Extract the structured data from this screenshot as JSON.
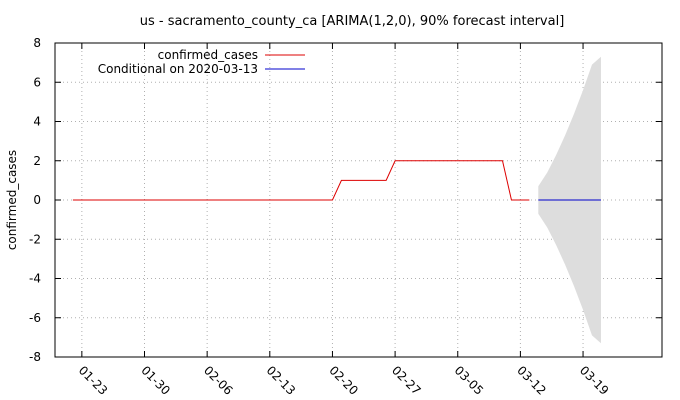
{
  "chart_data": {
    "type": "line",
    "title": "us - sacramento_county_ca [ARIMA(1,2,0), 90% forecast interval]",
    "ylabel": "confirmed_cases",
    "xlabel": "",
    "ylim": [
      -8,
      8
    ],
    "xlim": [
      "2020-01-20",
      "2020-03-20"
    ],
    "yticks": [
      "-8",
      "-6",
      "-4",
      "-2",
      "0",
      "2",
      "4",
      "6",
      "8"
    ],
    "xticks": [
      {
        "label": "01-23",
        "date": "2020-01-23"
      },
      {
        "label": "01-30",
        "date": "2020-01-30"
      },
      {
        "label": "02-06",
        "date": "2020-02-06"
      },
      {
        "label": "02-13",
        "date": "2020-02-13"
      },
      {
        "label": "02-20",
        "date": "2020-02-20"
      },
      {
        "label": "02-27",
        "date": "2020-02-27"
      },
      {
        "label": "03-05",
        "date": "2020-03-05"
      },
      {
        "label": "03-12",
        "date": "2020-03-12"
      },
      {
        "label": "03-19",
        "date": "2020-03-19"
      }
    ],
    "grid": true,
    "legend_position": "top-left",
    "series": [
      {
        "name": "confirmed_cases",
        "color": "#dd0000",
        "points": [
          [
            "2020-01-22",
            0
          ],
          [
            "2020-02-20",
            0
          ],
          [
            "2020-02-21",
            1
          ],
          [
            "2020-02-26",
            1
          ],
          [
            "2020-02-27",
            2
          ],
          [
            "2020-03-10",
            2
          ],
          [
            "2020-03-11",
            0
          ],
          [
            "2020-03-13",
            0
          ]
        ]
      },
      {
        "name": "Conditional on 2020-03-13",
        "color": "#0000cc",
        "points": [
          [
            "2020-03-14",
            0
          ],
          [
            "2020-03-21",
            0
          ]
        ]
      }
    ],
    "forecast_interval": {
      "color": "#dddddd",
      "upper": [
        [
          "2020-03-14",
          0.7
        ],
        [
          "2020-03-15",
          1.4
        ],
        [
          "2020-03-16",
          2.3
        ],
        [
          "2020-03-17",
          3.3
        ],
        [
          "2020-03-18",
          4.4
        ],
        [
          "2020-03-19",
          5.6
        ],
        [
          "2020-03-20",
          6.9
        ],
        [
          "2020-03-21",
          7.3
        ]
      ],
      "lower": [
        [
          "2020-03-14",
          -0.7
        ],
        [
          "2020-03-15",
          -1.4
        ],
        [
          "2020-03-16",
          -2.3
        ],
        [
          "2020-03-17",
          -3.3
        ],
        [
          "2020-03-18",
          -4.4
        ],
        [
          "2020-03-19",
          -5.6
        ],
        [
          "2020-03-20",
          -6.9
        ],
        [
          "2020-03-21",
          -7.3
        ]
      ]
    }
  }
}
